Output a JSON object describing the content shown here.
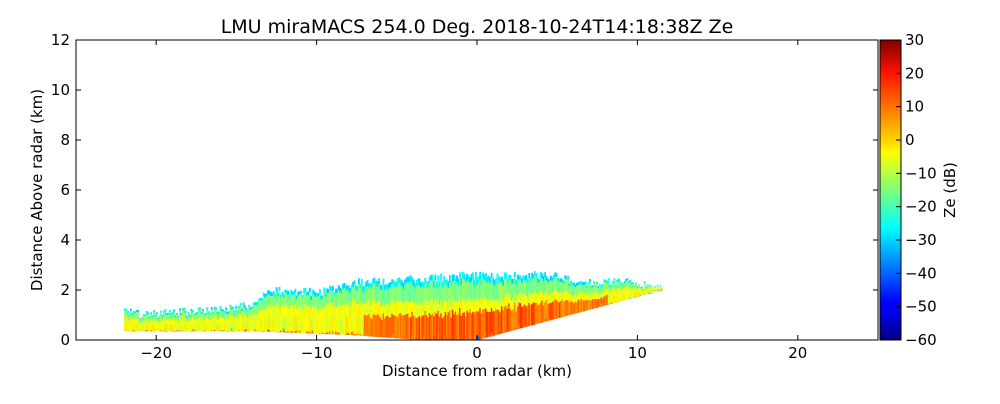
{
  "chart_data": {
    "type": "heatmap",
    "title": "LMU miraMACS 254.0 Deg. 2018-10-24T14:18:38Z  Ze",
    "xlabel": "Distance from radar (km)",
    "ylabel": "Distance Above radar  (km)",
    "xlim": [
      -25,
      25
    ],
    "ylim": [
      0,
      12
    ],
    "xticks": [
      -20,
      -10,
      0,
      10,
      20
    ],
    "xtick_labels": [
      "−20",
      "−10",
      "0",
      "10",
      "20"
    ],
    "yticks": [
      0,
      2,
      4,
      6,
      8,
      10,
      12
    ],
    "ytick_labels": [
      "0",
      "2",
      "4",
      "6",
      "8",
      "10",
      "12"
    ],
    "colorbar": {
      "label": "Ze (dB)",
      "colormap": "jet",
      "range": [
        -60,
        30
      ],
      "ticks": [
        30,
        20,
        10,
        0,
        -10,
        -20,
        -30,
        -40,
        -50,
        -60
      ],
      "tick_labels": [
        "30",
        "20",
        "10",
        "0",
        "−10",
        "−20",
        "−30",
        "−40",
        "−50",
        "−60"
      ]
    },
    "echo_region": {
      "description_units": "km, dB",
      "top_envelope": [
        {
          "x": -22.0,
          "y": 1.2
        },
        {
          "x": -21.0,
          "y": 1.0
        },
        {
          "x": -19.0,
          "y": 1.1
        },
        {
          "x": -16.0,
          "y": 1.25
        },
        {
          "x": -14.0,
          "y": 1.4
        },
        {
          "x": -13.0,
          "y": 2.0
        },
        {
          "x": -10.0,
          "y": 1.9
        },
        {
          "x": -8.0,
          "y": 2.2
        },
        {
          "x": -7.5,
          "y": 2.3
        },
        {
          "x": -5.0,
          "y": 2.4
        },
        {
          "x": -2.0,
          "y": 2.5
        },
        {
          "x": 0.0,
          "y": 2.6
        },
        {
          "x": 1.0,
          "y": 2.5
        },
        {
          "x": 3.0,
          "y": 2.6
        },
        {
          "x": 5.0,
          "y": 2.55
        },
        {
          "x": 6.5,
          "y": 2.3
        },
        {
          "x": 8.0,
          "y": 2.3
        },
        {
          "x": 9.5,
          "y": 2.35
        },
        {
          "x": 10.5,
          "y": 2.15
        },
        {
          "x": 11.5,
          "y": 2.05
        }
      ],
      "bottom_envelope": [
        {
          "x": -22.0,
          "y": 0.35
        },
        {
          "x": -14.0,
          "y": 0.35
        },
        {
          "x": -8.0,
          "y": 0.2
        },
        {
          "x": -4.0,
          "y": 0.02
        },
        {
          "x": 0.0,
          "y": 0.0
        },
        {
          "x": 11.5,
          "y": 2.0
        }
      ],
      "ze_bands_dB": [
        {
          "name": "edge",
          "ze": -28
        },
        {
          "name": "outer",
          "ze": -15
        },
        {
          "name": "mid",
          "ze": -5
        },
        {
          "name": "core",
          "ze": 8
        },
        {
          "name": "peak",
          "ze": 13
        }
      ]
    }
  }
}
